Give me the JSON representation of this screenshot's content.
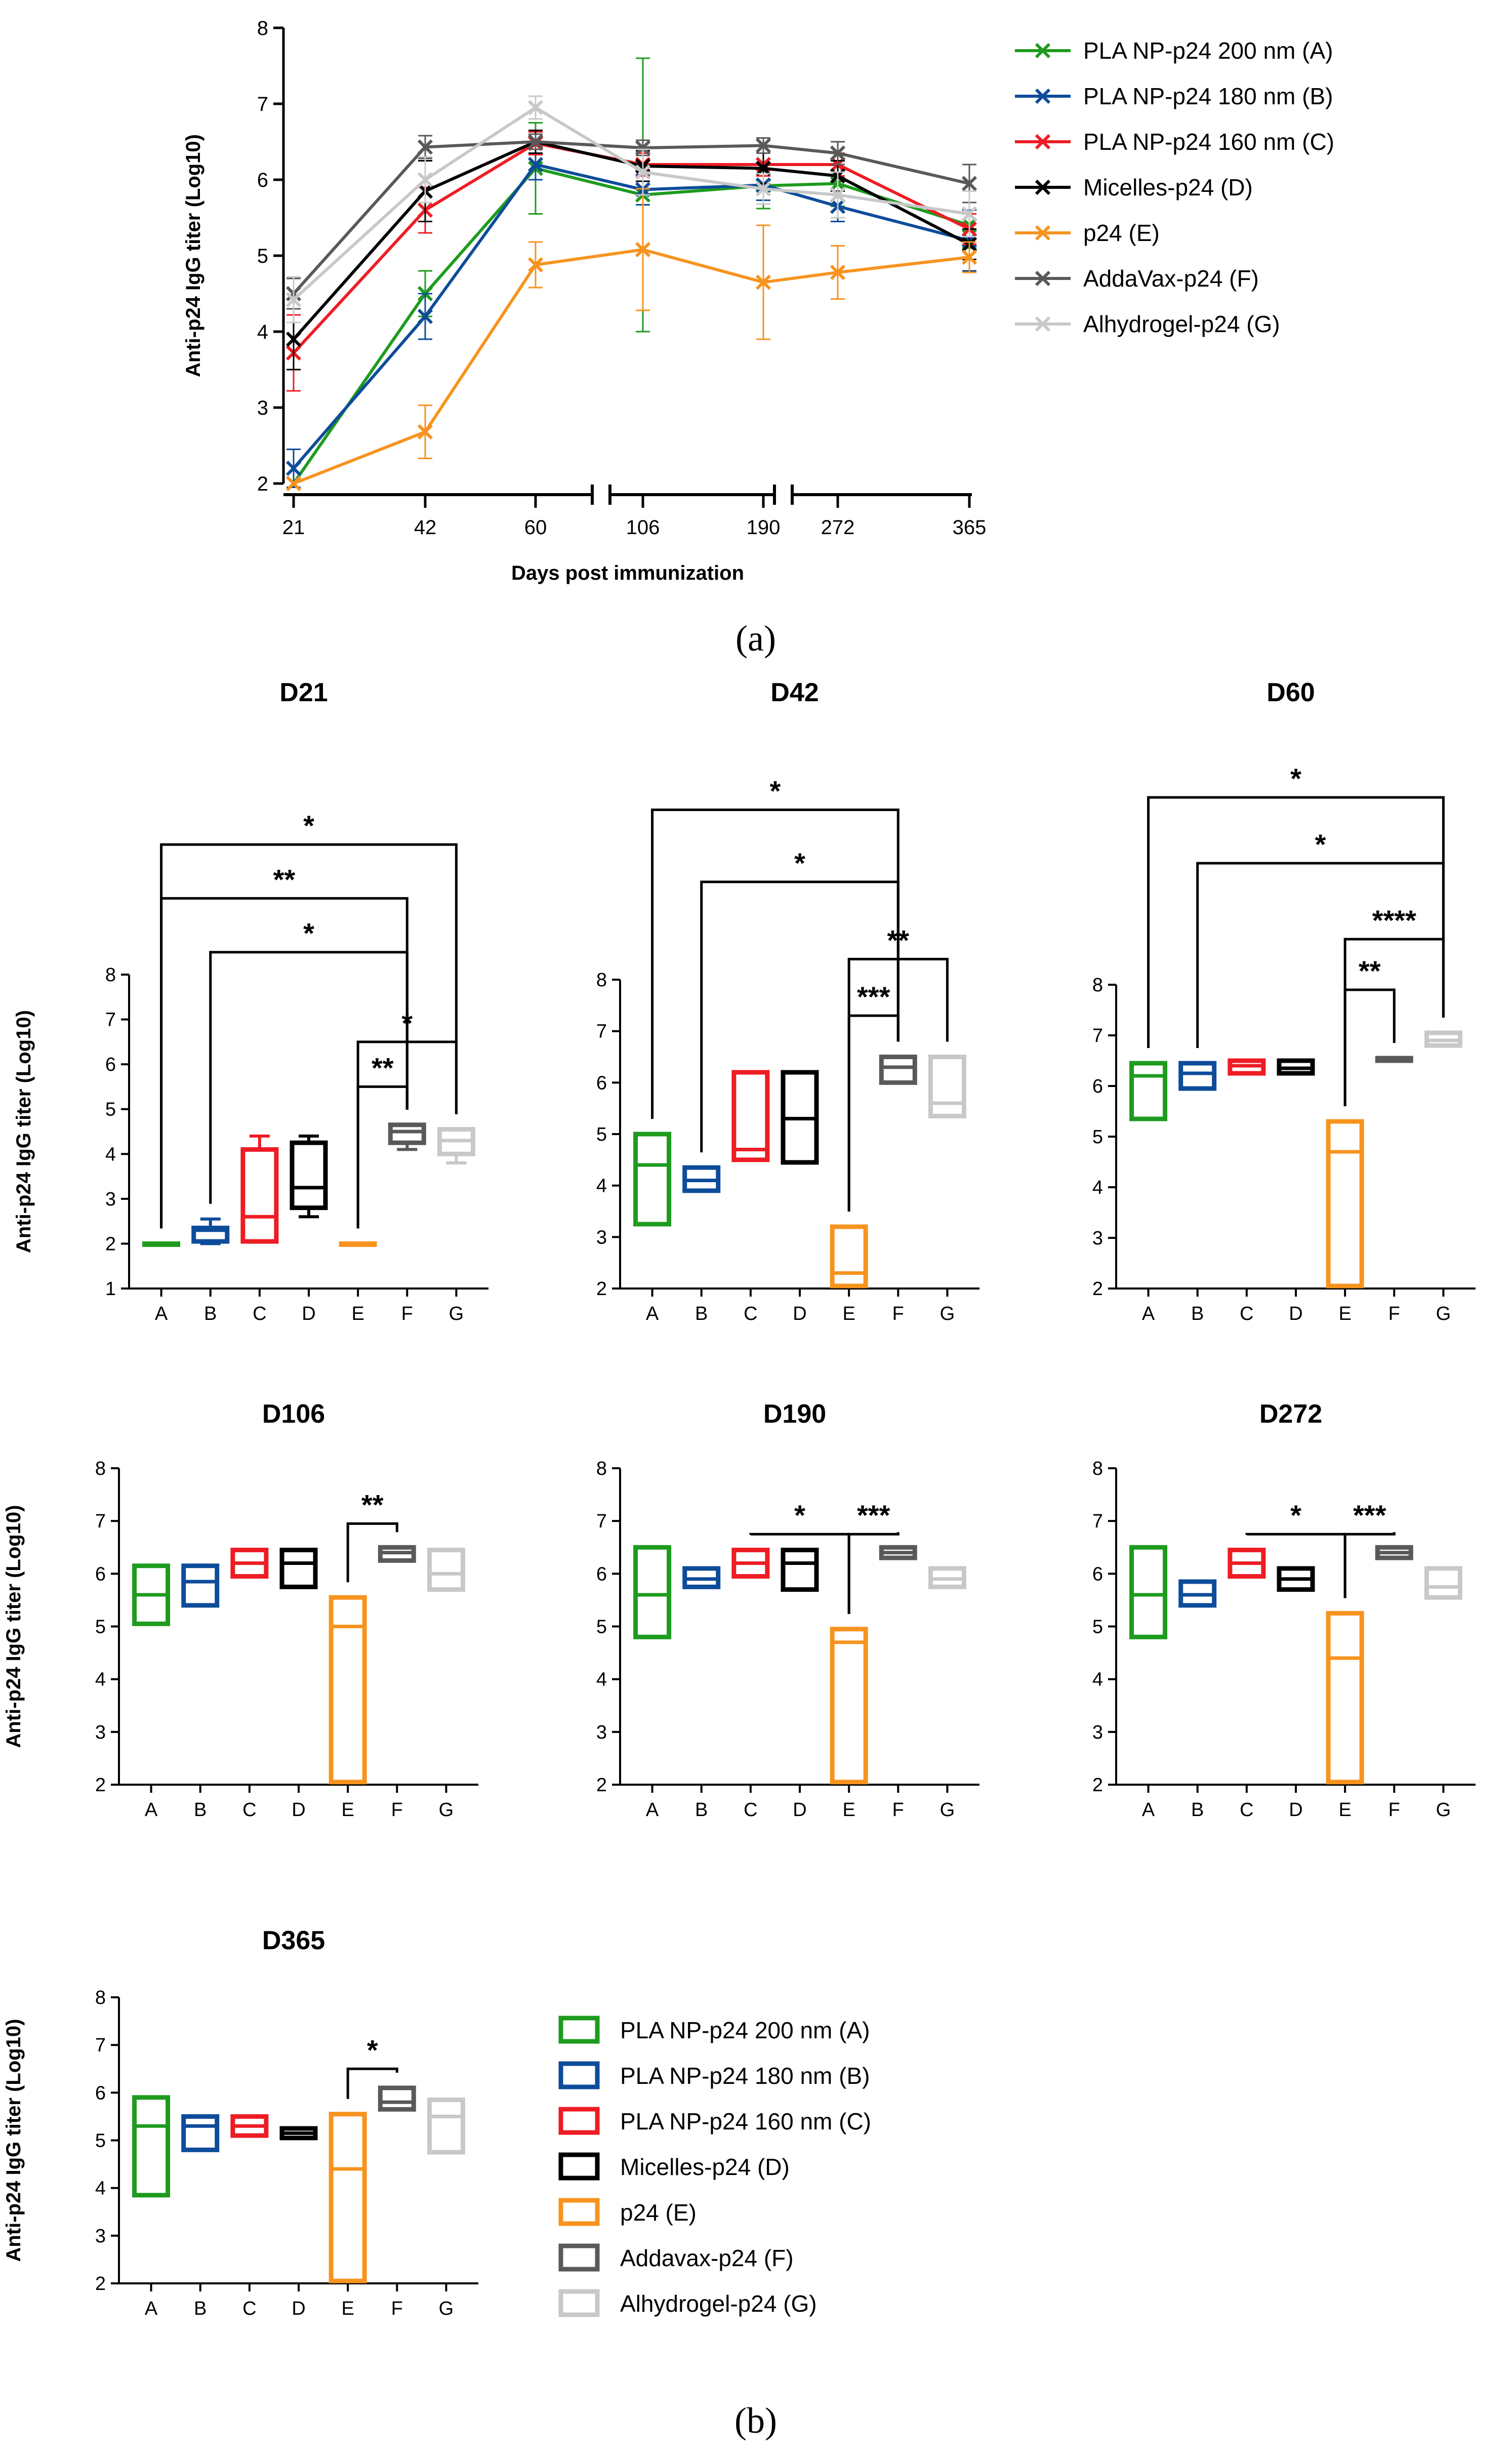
{
  "colors": {
    "A": "#1e9b1e",
    "B": "#0d4c9a",
    "C": "#ee1c24",
    "D": "#000000",
    "E": "#f7931e",
    "F": "#595959",
    "G": "#c8c8c8"
  },
  "panel_a_caption": "(a)",
  "panel_b_caption": "(b)",
  "chart_data": [
    {
      "type": "line",
      "xlabel": "Days post immunization",
      "ylabel": "Anti-p24 IgG titer (Log10)",
      "ylim": [
        2,
        8
      ],
      "yticks": [
        "2",
        "3",
        "4",
        "5",
        "6",
        "7",
        "8"
      ],
      "x": [
        "21",
        "42",
        "60",
        "106",
        "190",
        "272",
        "365"
      ],
      "axis_breaks": [
        "60-106",
        "190-272"
      ],
      "legend_position": "right",
      "series": [
        {
          "name": "PLA NP-p24 200 nm (A)",
          "key": "A",
          "values": [
            2.0,
            4.5,
            6.15,
            5.8,
            5.92,
            5.95,
            5.4
          ],
          "err": [
            0,
            0.3,
            0.6,
            1.8,
            0.3,
            0.3,
            0.3
          ]
        },
        {
          "name": "PLA NP-p24 180 nm (B)",
          "key": "B",
          "values": [
            2.2,
            4.2,
            6.2,
            5.87,
            5.93,
            5.65,
            5.2
          ],
          "err": [
            0.25,
            0.3,
            0.2,
            0.2,
            0.2,
            0.2,
            0.4
          ]
        },
        {
          "name": "PLA NP-p24 160 nm (C)",
          "key": "C",
          "values": [
            3.72,
            5.6,
            6.48,
            6.2,
            6.2,
            6.2,
            5.35
          ],
          "err": [
            0.5,
            0.3,
            0.15,
            0.15,
            0.15,
            0.15,
            0.2
          ]
        },
        {
          "name": "Micelles-p24 (D)",
          "key": "D",
          "values": [
            3.9,
            5.85,
            6.5,
            6.18,
            6.15,
            6.05,
            5.15
          ],
          "err": [
            0.4,
            0.4,
            0.15,
            0.2,
            0.2,
            0.2,
            0.2
          ]
        },
        {
          "name": "p24 (E)",
          "key": "E",
          "values": [
            2.0,
            2.68,
            4.88,
            5.08,
            4.65,
            4.78,
            4.98
          ],
          "err": [
            0,
            0.35,
            0.3,
            0.8,
            0.75,
            0.35,
            0.2
          ]
        },
        {
          "name": "AddaVax-p24 (F)",
          "key": "F",
          "values": [
            4.5,
            6.43,
            6.5,
            6.42,
            6.45,
            6.35,
            5.95
          ],
          "err": [
            0.2,
            0.15,
            0.1,
            0.1,
            0.1,
            0.15,
            0.25
          ]
        },
        {
          "name": "Alhydrogel-p24 (G)",
          "key": "G",
          "values": [
            4.42,
            6.0,
            6.95,
            6.1,
            5.88,
            5.8,
            5.55
          ],
          "err": [
            0.3,
            0.3,
            0.15,
            0.3,
            0.2,
            0.3,
            0.3
          ]
        }
      ]
    },
    {
      "type": "box",
      "title": "D21",
      "ylabel": "Anti-p24 IgG titer (Log10)",
      "ylim": [
        1,
        8
      ],
      "yticks": [
        "1",
        "2",
        "3",
        "4",
        "5",
        "6",
        "7",
        "8"
      ],
      "categories": [
        "A",
        "B",
        "C",
        "D",
        "E",
        "F",
        "G"
      ],
      "boxes": [
        [
          2,
          2,
          2,
          2,
          2
        ],
        [
          2,
          2.05,
          2.3,
          2.35,
          2.55
        ],
        [
          2.05,
          2.05,
          2.6,
          4.1,
          4.4
        ],
        [
          2.6,
          2.8,
          3.25,
          4.25,
          4.4
        ],
        [
          2,
          2,
          2,
          2,
          2
        ],
        [
          4.1,
          4.25,
          4.5,
          4.65,
          4.65
        ],
        [
          3.8,
          4.0,
          4.3,
          4.55,
          4.55
        ]
      ],
      "comparisons": [
        {
          "from": "E",
          "to": "F",
          "label": "**",
          "y": 5.5
        },
        {
          "from": "E",
          "to": "G",
          "label": "*",
          "y": 6.5
        },
        {
          "from": "B",
          "to": "F",
          "label": "*",
          "y": 8.5
        },
        {
          "from": "A",
          "to": "F",
          "label": "**",
          "y": 9.7
        },
        {
          "from": "A",
          "to": "G",
          "label": "*",
          "y": 10.9
        }
      ]
    },
    {
      "type": "box",
      "title": "D42",
      "ylabel": "",
      "ylim": [
        2,
        8
      ],
      "yticks": [
        "2",
        "3",
        "4",
        "5",
        "6",
        "7",
        "8"
      ],
      "categories": [
        "A",
        "B",
        "C",
        "D",
        "E",
        "F",
        "G"
      ],
      "boxes": [
        [
          3.25,
          3.25,
          4.4,
          5.0,
          5.0
        ],
        [
          3.9,
          3.9,
          4.1,
          4.35,
          4.35
        ],
        [
          4.5,
          4.5,
          4.7,
          6.2,
          6.2
        ],
        [
          4.45,
          4.45,
          5.3,
          6.2,
          6.2
        ],
        [
          2.05,
          2.05,
          2.3,
          3.2,
          3.2
        ],
        [
          6.0,
          6.0,
          6.3,
          6.5,
          6.5
        ],
        [
          5.35,
          5.35,
          5.6,
          6.5,
          6.5
        ]
      ],
      "comparisons": [
        {
          "from": "E",
          "to": "F",
          "label": "***",
          "y": 7.3
        },
        {
          "from": "E",
          "to": "G",
          "label": "**",
          "y": 8.4
        },
        {
          "from": "B",
          "to": "F",
          "label": "*",
          "y": 9.9
        },
        {
          "from": "A",
          "to": "F",
          "label": "*",
          "y": 11.3
        }
      ]
    },
    {
      "type": "box",
      "title": "D60",
      "ylabel": "",
      "ylim": [
        2,
        8
      ],
      "yticks": [
        "2",
        "3",
        "4",
        "5",
        "6",
        "7",
        "8"
      ],
      "categories": [
        "A",
        "B",
        "C",
        "D",
        "E",
        "F",
        "G"
      ],
      "boxes": [
        [
          5.35,
          5.35,
          6.2,
          6.45,
          6.45
        ],
        [
          5.95,
          5.95,
          6.25,
          6.45,
          6.45
        ],
        [
          6.25,
          6.25,
          6.4,
          6.5,
          6.5
        ],
        [
          6.25,
          6.25,
          6.35,
          6.5,
          6.5
        ],
        [
          2.05,
          2.05,
          4.7,
          5.3,
          5.3
        ],
        [
          6.5,
          6.5,
          6.52,
          6.55,
          6.55
        ],
        [
          6.8,
          6.8,
          6.9,
          7.05,
          7.05
        ]
      ],
      "comparisons": [
        {
          "from": "E",
          "to": "F",
          "label": "**",
          "y": 7.9
        },
        {
          "from": "E",
          "to": "G",
          "label": "****",
          "y": 8.9
        },
        {
          "from": "B",
          "to": "G",
          "label": "*",
          "y": 10.4
        },
        {
          "from": "A",
          "to": "G",
          "label": "*",
          "y": 11.7
        }
      ]
    },
    {
      "type": "box",
      "title": "D106",
      "ylabel": "Anti-p24 IgG titer (Log10)",
      "ylim": [
        2,
        8
      ],
      "yticks": [
        "2",
        "3",
        "4",
        "5",
        "6",
        "7",
        "8"
      ],
      "categories": [
        "A",
        "B",
        "C",
        "D",
        "E",
        "F",
        "G"
      ],
      "boxes": [
        [
          5.05,
          5.05,
          5.6,
          6.15,
          6.15
        ],
        [
          5.4,
          5.4,
          5.85,
          6.15,
          6.15
        ],
        [
          5.95,
          5.95,
          6.2,
          6.45,
          6.45
        ],
        [
          5.75,
          5.75,
          6.2,
          6.45,
          6.45
        ],
        [
          2.05,
          2.05,
          5.0,
          5.55,
          5.55
        ],
        [
          6.25,
          6.25,
          6.4,
          6.5,
          6.5
        ],
        [
          5.7,
          5.7,
          6.0,
          6.45,
          6.45
        ]
      ],
      "comparisons": [
        {
          "from": "E",
          "to": "F",
          "label": "**",
          "y": 6.95
        }
      ]
    },
    {
      "type": "box",
      "title": "D190",
      "ylabel": "",
      "ylim": [
        2,
        8
      ],
      "yticks": [
        "2",
        "3",
        "4",
        "5",
        "6",
        "7",
        "8"
      ],
      "categories": [
        "A",
        "B",
        "C",
        "D",
        "E",
        "F",
        "G"
      ],
      "boxes": [
        [
          4.8,
          4.8,
          5.6,
          6.5,
          6.5
        ],
        [
          5.75,
          5.75,
          5.9,
          6.1,
          6.1
        ],
        [
          5.95,
          5.95,
          6.2,
          6.45,
          6.45
        ],
        [
          5.7,
          5.7,
          6.2,
          6.45,
          6.45
        ],
        [
          2.05,
          2.05,
          4.7,
          4.95,
          4.95
        ],
        [
          6.3,
          6.3,
          6.4,
          6.5,
          6.5
        ],
        [
          5.75,
          5.75,
          5.9,
          6.1,
          6.1
        ]
      ],
      "comparisons": [
        {
          "from": "C",
          "to": "E",
          "label": "*",
          "y": 6.75
        },
        {
          "from": "E",
          "to": "F",
          "label": "***",
          "y": 6.75
        }
      ]
    },
    {
      "type": "box",
      "title": "D272",
      "ylabel": "",
      "ylim": [
        2,
        8
      ],
      "yticks": [
        "2",
        "3",
        "4",
        "5",
        "6",
        "7",
        "8"
      ],
      "categories": [
        "A",
        "B",
        "C",
        "D",
        "E",
        "F",
        "G"
      ],
      "boxes": [
        [
          4.8,
          4.8,
          5.6,
          6.5,
          6.5
        ],
        [
          5.4,
          5.4,
          5.6,
          5.85,
          5.85
        ],
        [
          5.95,
          5.95,
          6.2,
          6.45,
          6.45
        ],
        [
          5.7,
          5.7,
          5.9,
          6.1,
          6.1
        ],
        [
          2.05,
          2.05,
          4.4,
          5.25,
          5.25
        ],
        [
          6.3,
          6.3,
          6.4,
          6.5,
          6.5
        ],
        [
          5.55,
          5.55,
          5.75,
          6.1,
          6.1
        ]
      ],
      "comparisons": [
        {
          "from": "C",
          "to": "E",
          "label": "*",
          "y": 6.75
        },
        {
          "from": "E",
          "to": "F",
          "label": "***",
          "y": 6.75
        }
      ]
    },
    {
      "type": "box",
      "title": "D365",
      "ylabel": "Anti-p24 IgG titer (Log10)",
      "ylim": [
        2,
        8
      ],
      "yticks": [
        "2",
        "3",
        "4",
        "5",
        "6",
        "7",
        "8"
      ],
      "categories": [
        "A",
        "B",
        "C",
        "D",
        "E",
        "F",
        "G"
      ],
      "boxes": [
        [
          3.85,
          3.85,
          5.3,
          5.9,
          5.9
        ],
        [
          4.8,
          4.8,
          5.3,
          5.5,
          5.5
        ],
        [
          5.1,
          5.1,
          5.3,
          5.5,
          5.5
        ],
        [
          5.05,
          5.05,
          5.15,
          5.25,
          5.25
        ],
        [
          2.05,
          2.05,
          4.4,
          5.55,
          5.55
        ],
        [
          5.65,
          5.65,
          5.8,
          6.1,
          6.1
        ],
        [
          4.75,
          4.75,
          5.5,
          5.85,
          5.85
        ]
      ],
      "comparisons": [
        {
          "from": "E",
          "to": "F",
          "label": "*",
          "y": 6.5
        }
      ]
    }
  ],
  "legend_b": [
    {
      "key": "A",
      "label": "PLA NP-p24 200 nm (A)"
    },
    {
      "key": "B",
      "label": "PLA NP-p24 180 nm (B)"
    },
    {
      "key": "C",
      "label": "PLA NP-p24 160 nm (C)"
    },
    {
      "key": "D",
      "label": "Micelles-p24 (D)"
    },
    {
      "key": "E",
      "label": "p24 (E)"
    },
    {
      "key": "F",
      "label": "Addavax-p24 (F)"
    },
    {
      "key": "G",
      "label": "Alhydrogel-p24 (G)"
    }
  ]
}
